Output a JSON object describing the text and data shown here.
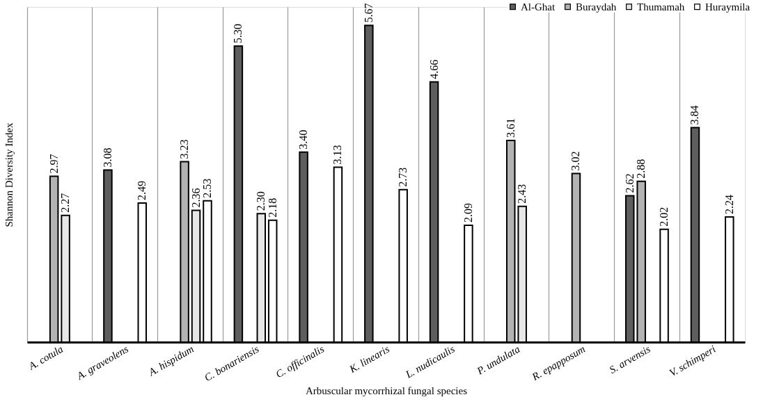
{
  "chart_data": {
    "type": "bar",
    "xlabel": "Arbuscular mycorrhizal fungal species",
    "ylabel": "Shannon Diversity Index",
    "categories": [
      "A. cotula",
      "A. graveolens",
      "A. hispidum",
      "C. bonariensis",
      "C. officinalis",
      "K. linearis",
      "L. nudicaulis",
      "P. undulata",
      "R. epapposum",
      "S. arvensis",
      "V.  schimperi"
    ],
    "series": [
      {
        "name": "Al-Ghat",
        "color": "#5e5e5e",
        "values": [
          null,
          3.08,
          null,
          5.3,
          3.4,
          5.67,
          4.66,
          null,
          null,
          2.62,
          3.84
        ],
        "value_labels": [
          null,
          "3.08",
          null,
          "5.30",
          "3.40",
          "5.67",
          "4.66",
          null,
          null,
          "2.62",
          "3.84"
        ]
      },
      {
        "name": "Buraydah",
        "color": "#b3b3b3",
        "values": [
          2.97,
          null,
          3.23,
          null,
          null,
          null,
          null,
          3.61,
          3.02,
          2.88,
          null
        ],
        "value_labels": [
          "2.97",
          null,
          "3.23",
          null,
          null,
          null,
          null,
          "3.61",
          "3.02",
          "2.88",
          null
        ]
      },
      {
        "name": "Thumamah",
        "color": "#e6e6e6",
        "values": [
          2.27,
          null,
          2.36,
          2.3,
          null,
          null,
          null,
          2.43,
          null,
          null,
          null
        ],
        "value_labels": [
          "2.27",
          null,
          "2.36",
          "2.30",
          null,
          null,
          null,
          "2.43",
          null,
          null,
          null
        ]
      },
      {
        "name": "Huraymila",
        "color": "#ffffff",
        "values": [
          null,
          2.49,
          2.53,
          2.18,
          3.13,
          2.73,
          2.09,
          null,
          null,
          2.02,
          2.24
        ],
        "value_labels": [
          null,
          "2.49",
          "2.53",
          "2.18",
          "3.13",
          "2.73",
          "2.09",
          null,
          null,
          "2.02",
          "2.24"
        ]
      }
    ],
    "relative": false,
    "grid": "x",
    "legend": "top right"
  }
}
